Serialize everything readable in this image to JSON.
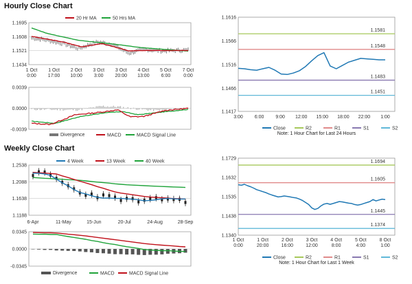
{
  "hourly": {
    "title": "Hourly Close Chart",
    "price": {
      "legend": [
        {
          "name": "20 Hr MA",
          "color": "#c0101a"
        },
        {
          "name": "50 Hrs MA",
          "color": "#1fa33a"
        }
      ],
      "yticks": [
        "1.1695",
        "1.1608",
        "1.1521",
        "1.1434"
      ],
      "ylim": [
        1.1434,
        1.1695
      ],
      "xticks": [
        [
          "1 Oct",
          "0:00"
        ],
        [
          "1 Oct",
          "17:00"
        ],
        [
          "2 Oct",
          "10:00"
        ],
        [
          "3 Oct",
          "3:00"
        ],
        [
          "3 Oct",
          "20:00"
        ],
        [
          "4 Oct",
          "13:00"
        ],
        [
          "5 Oct",
          "6:00"
        ],
        [
          "7 Oct",
          "0:00"
        ]
      ],
      "close_color": "#222222"
    },
    "macd": {
      "yticks": [
        "0.0039",
        "0.0000",
        "-0.0039"
      ],
      "ylim": [
        -0.0039,
        0.0039
      ],
      "legend": [
        {
          "name": "Divergence",
          "color": "#777777"
        },
        {
          "name": "MACD",
          "color": "#c0101a"
        },
        {
          "name": "MACD Signal Line",
          "color": "#1fa33a"
        }
      ]
    },
    "pivot": {
      "yticks": [
        "1.1616",
        "1.1566",
        "1.1516",
        "1.1466",
        "1.1417"
      ],
      "ylim": [
        1.1417,
        1.1616
      ],
      "levels": [
        {
          "name": "R2",
          "value": 1.1581,
          "label": "1.1581",
          "color": "#a6c85a"
        },
        {
          "name": "R1",
          "value": 1.1548,
          "label": "1.1548",
          "color": "#e08a8a"
        },
        {
          "name": "S1",
          "value": 1.1483,
          "label": "1.1483",
          "color": "#8878b0"
        },
        {
          "name": "S2",
          "value": 1.1451,
          "label": "1.1451",
          "color": "#60b8d8"
        }
      ],
      "close_name": "Close",
      "close_color": "#1f78b4",
      "xticks": [
        "3:00",
        "6:00",
        "9:00",
        "12:00",
        "15:00",
        "18:00",
        "22:00",
        "1:00"
      ],
      "close": [
        1.1508,
        1.1507,
        1.1505,
        1.1504,
        1.1507,
        1.151,
        1.1504,
        1.1496,
        1.1495,
        1.1498,
        1.1503,
        1.1512,
        1.1524,
        1.1535,
        1.1541,
        1.1513,
        1.1507,
        1.1514,
        1.1521,
        1.1525,
        1.1529,
        1.1528,
        1.1527,
        1.1526,
        1.1526
      ],
      "note": "Note: 1 Hour Chart for Last 24 Hours"
    }
  },
  "weekly": {
    "title": "Weekly Close Chart",
    "price": {
      "legend": [
        {
          "name": "4 Week",
          "color": "#1f78b4"
        },
        {
          "name": "13 Week",
          "color": "#c0101a"
        },
        {
          "name": "40 Week",
          "color": "#1fa33a"
        }
      ],
      "yticks": [
        "1.2538",
        "1.2088",
        "1.1638",
        "1.1188"
      ],
      "ylim": [
        1.1188,
        1.2538
      ],
      "xticks": [
        "6-Apr",
        "11-May",
        "15-Jun",
        "20-Jul",
        "24-Aug",
        "28-Sep"
      ]
    },
    "macd": {
      "yticks": [
        "0.0345",
        "0.0000",
        "-0.0345"
      ],
      "ylim": [
        -0.0345,
        0.0345
      ],
      "legend": [
        {
          "name": "Divergence",
          "color": "#555555"
        },
        {
          "name": "MACD",
          "color": "#1fa33a"
        },
        {
          "name": "MACD Signal Line",
          "color": "#c0101a"
        }
      ]
    },
    "pivot": {
      "yticks": [
        "1.1729",
        "1.1632",
        "1.1535",
        "1.1438",
        "1.1340"
      ],
      "ylim": [
        1.134,
        1.1729
      ],
      "levels": [
        {
          "name": "R2",
          "value": 1.1694,
          "label": "1.1694",
          "color": "#a6c85a"
        },
        {
          "name": "R1",
          "value": 1.1605,
          "label": "1.1605",
          "color": "#e08a8a"
        },
        {
          "name": "S1",
          "value": 1.1445,
          "label": "1.1445",
          "color": "#8878b0"
        },
        {
          "name": "S2",
          "value": 1.1374,
          "label": "1.1374",
          "color": "#60b8d8"
        }
      ],
      "close_name": "Close",
      "close_color": "#1f78b4",
      "xticks": [
        [
          "1 Oct",
          "0:00"
        ],
        [
          "1 Oct",
          "20:00"
        ],
        [
          "2 Oct",
          "16:00"
        ],
        [
          "3 Oct",
          "12:00"
        ],
        [
          "4 Oct",
          "8:00"
        ],
        [
          "5 Oct",
          "4:00"
        ],
        [
          "8 Oct",
          "1:00"
        ]
      ],
      "close": [
        1.1595,
        1.1592,
        1.1597,
        1.159,
        1.1585,
        1.1578,
        1.157,
        1.1565,
        1.156,
        1.1555,
        1.1548,
        1.1543,
        1.1538,
        1.1533,
        1.1535,
        1.1538,
        1.1536,
        1.1533,
        1.153,
        1.1528,
        1.1522,
        1.1515,
        1.1505,
        1.1495,
        1.1478,
        1.147,
        1.1475,
        1.1488,
        1.1497,
        1.15,
        1.1496,
        1.15,
        1.1505,
        1.151,
        1.1508,
        1.1505,
        1.1502,
        1.15,
        1.1495,
        1.1492,
        1.1495,
        1.15,
        1.1505,
        1.151,
        1.152,
        1.1513,
        1.1518,
        1.1522,
        1.152
      ],
      "note": "Note: 1 Hour Chart for Last 1 Week"
    }
  },
  "chart_data": [
    {
      "type": "line",
      "title": "",
      "x": [
        "3:00",
        "6:00",
        "9:00",
        "12:00",
        "15:00",
        "18:00",
        "22:00",
        "1:00"
      ],
      "ylim": [
        1.1417,
        1.1616
      ],
      "note": "Note: 1 Hour Chart for Last 24 Hours"
    },
    {
      "type": "line",
      "title": "",
      "x": [
        "1 Oct 0:00",
        "1 Oct 20:00",
        "2 Oct 16:00",
        "3 Oct 12:00",
        "4 Oct 8:00",
        "5 Oct 4:00",
        "8 Oct 1:00"
      ],
      "ylim": [
        1.134,
        1.1729
      ],
      "note": "Note: 1 Hour Chart for Last 1 Week"
    }
  ]
}
